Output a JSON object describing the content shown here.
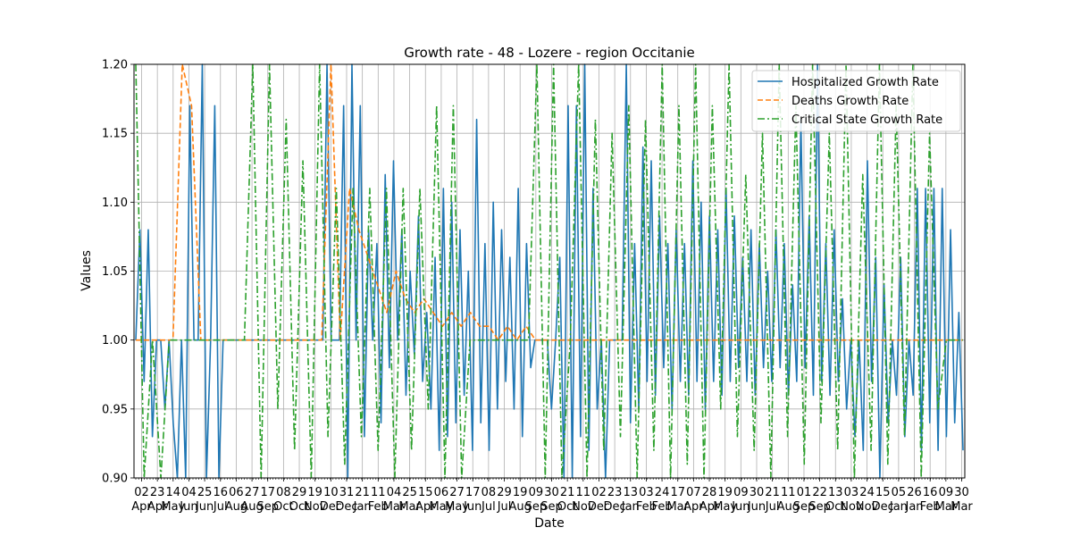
{
  "chart_data": {
    "type": "line",
    "title": "Growth rate - 48 - Lozere - region Occitanie",
    "xlabel": "Date",
    "ylabel": "Values",
    "ylim": [
      0.9,
      1.2
    ],
    "yticks": [
      "0.90",
      "0.95",
      "1.00",
      "1.05",
      "1.10",
      "1.15",
      "1.20"
    ],
    "xtick_days": [
      "02",
      "23",
      "14",
      "04",
      "25",
      "16",
      "06",
      "27",
      "17",
      "08",
      "29",
      "19",
      "10",
      "31",
      "21",
      "11",
      "04",
      "25",
      "15",
      "06",
      "27",
      "17",
      "08",
      "29",
      "19",
      "09",
      "30",
      "21",
      "11",
      "02",
      "23",
      "13",
      "03",
      "24",
      "17",
      "07",
      "28",
      "19",
      "09",
      "30",
      "21",
      "11",
      "01",
      "22",
      "13",
      "03",
      "24",
      "15",
      "05",
      "26",
      "16",
      "09",
      "30"
    ],
    "xtick_months": [
      "Apr",
      "Apr",
      "May",
      "Jun",
      "Jun",
      "Jul",
      "Aug",
      "Aug",
      "Sep",
      "Oct",
      "Oct",
      "Nov",
      "Dec",
      "Dec",
      "Jan",
      "Feb",
      "Mar",
      "Mar",
      "Apr",
      "May",
      "May",
      "Jun",
      "Jul",
      "Jul",
      "Aug",
      "Sep",
      "Sep",
      "Oct",
      "Nov",
      "Dec",
      "Dec",
      "Jan",
      "Feb",
      "Feb",
      "Mar",
      "Apr",
      "Apr",
      "May",
      "Jun",
      "Jun",
      "Jul",
      "Aug",
      "Sep",
      "Sep",
      "Oct",
      "Nov",
      "Nov",
      "Dec",
      "Jan",
      "Jan",
      "Feb",
      "Mar",
      "Mar"
    ],
    "grid": true,
    "legend_position": "top-right",
    "series": [
      {
        "name": "Hospitalized Growth Rate",
        "color": "#1f77b4",
        "style": "solid",
        "values": [
          1.0,
          1.08,
          0.97,
          1.08,
          0.93,
          1.0,
          1.0,
          0.95,
          1.0,
          0.94,
          0.9,
          1.0,
          0.9,
          1.17,
          1.0,
          1.0,
          1.2,
          0.9,
          1.0,
          1.17,
          0.9,
          1.0,
          1.0,
          1.0,
          1.0,
          1.0,
          1.0,
          1.0,
          1.0,
          1.0,
          1.0,
          1.0,
          1.0,
          1.0,
          1.0,
          1.0,
          1.0,
          1.0,
          1.0,
          1.0,
          1.0,
          1.0,
          1.0,
          1.0,
          1.0,
          1.0,
          1.2,
          1.0,
          1.0,
          1.0,
          1.17,
          0.9,
          1.2,
          1.0,
          1.17,
          0.93,
          1.08,
          1.0,
          1.07,
          0.94,
          1.12,
          0.98,
          1.13,
          1.0,
          1.08,
          0.96,
          1.05,
          0.99,
          1.09,
          0.97,
          1.02,
          0.95,
          1.06,
          0.92,
          1.11,
          0.93,
          1.1,
          0.94,
          1.08,
          0.96,
          1.05,
          0.92,
          1.16,
          0.94,
          1.07,
          0.92,
          1.1,
          0.95,
          1.08,
          0.97,
          1.06,
          0.95,
          1.11,
          0.93,
          1.07,
          0.98,
          1.0,
          1.0,
          1.0,
          1.0,
          0.95,
          1.0,
          1.06,
          0.9,
          1.17,
          0.9,
          1.17,
          0.93,
          1.2,
          0.92,
          1.11,
          0.95,
          1.0,
          0.9,
          1.0,
          1.0,
          1.0,
          1.0,
          1.2,
          0.94,
          1.07,
          0.95,
          1.14,
          0.97,
          1.13,
          0.96,
          1.09,
          0.98,
          1.07,
          0.95,
          1.08,
          0.97,
          1.07,
          0.96,
          1.13,
          0.97,
          1.1,
          0.95,
          1.09,
          0.97,
          1.08,
          0.96,
          1.11,
          0.97,
          1.09,
          0.98,
          1.06,
          0.97,
          1.08,
          0.96,
          1.07,
          0.98,
          1.05,
          0.97,
          1.08,
          0.98,
          1.07,
          0.96,
          1.04,
          0.97,
          1.16,
          0.98,
          1.09,
          0.96,
          1.2,
          0.97,
          1.07,
          0.96,
          1.08,
          0.97,
          1.03,
          0.95,
          1.0,
          0.93,
          1.0,
          0.92,
          1.13,
          0.97,
          1.06,
          0.9,
          1.04,
          0.94,
          1.0,
          0.96,
          1.06,
          0.93,
          1.0,
          0.96,
          1.11,
          0.92,
          1.11,
          0.94,
          1.11,
          0.92,
          1.11,
          0.93,
          1.08,
          0.94,
          1.02,
          0.92
        ]
      },
      {
        "name": "Deaths Growth Rate",
        "color": "#ff7f0e",
        "style": "dashed",
        "values": [
          1.0,
          1.0,
          1.0,
          1.0,
          1.0,
          1.2,
          1.17,
          1.0,
          1.0,
          1.0,
          1.0,
          1.0,
          1.0,
          1.0,
          1.0,
          1.0,
          1.0,
          1.0,
          1.0,
          1.0,
          1.0,
          1.2,
          1.0,
          1.11,
          1.08,
          1.06,
          1.04,
          1.02,
          1.05,
          1.03,
          1.02,
          1.03,
          1.02,
          1.01,
          1.02,
          1.01,
          1.02,
          1.01,
          1.01,
          1.0,
          1.01,
          1.0,
          1.01,
          1.0,
          1.0,
          1.0,
          1.0,
          1.0,
          1.0,
          1.0,
          1.0,
          1.0,
          1.0,
          1.0,
          1.0,
          1.0,
          1.0,
          1.0,
          1.0,
          1.0,
          1.0,
          1.0,
          1.0,
          1.0,
          1.0,
          1.0,
          1.0,
          1.0,
          1.0,
          1.0,
          1.0,
          1.0,
          1.0,
          1.0,
          1.0,
          1.0,
          1.0,
          1.0,
          1.0,
          1.0,
          1.0,
          1.0,
          1.0,
          1.0,
          1.0,
          1.0,
          1.0,
          1.0,
          1.0,
          1.0
        ]
      },
      {
        "name": "Critical State Growth Rate",
        "color": "#2ca02c",
        "style": "dashdot",
        "values": [
          1.2,
          0.9,
          1.0,
          0.9,
          1.0,
          1.0,
          1.0,
          1.0,
          1.0,
          1.0,
          1.0,
          1.0,
          1.0,
          1.0,
          1.2,
          0.9,
          1.2,
          0.95,
          1.16,
          0.92,
          1.13,
          0.9,
          1.2,
          0.93,
          1.11,
          0.91,
          1.11,
          0.93,
          1.11,
          0.92,
          1.11,
          0.9,
          1.11,
          0.92,
          1.11,
          0.95,
          1.17,
          0.9,
          1.17,
          0.9,
          1.0,
          1.0,
          1.0,
          1.0,
          1.0,
          1.0,
          1.0,
          1.0,
          1.2,
          0.9,
          1.2,
          0.9,
          1.0,
          1.2,
          0.9,
          1.16,
          0.92,
          1.15,
          0.93,
          1.17,
          0.9,
          1.16,
          0.92,
          1.2,
          0.9,
          1.17,
          0.91,
          1.2,
          0.9,
          1.17,
          0.95,
          1.2,
          0.93,
          1.12,
          0.92,
          1.15,
          0.9,
          1.2,
          0.93,
          1.17,
          0.91,
          1.2,
          0.94,
          1.15,
          0.92,
          1.2,
          0.9,
          1.12,
          0.92,
          1.2,
          0.91,
          1.17,
          0.93,
          1.2,
          0.9,
          1.15,
          0.95,
          1.0,
          1.0,
          1.0
        ]
      }
    ]
  }
}
